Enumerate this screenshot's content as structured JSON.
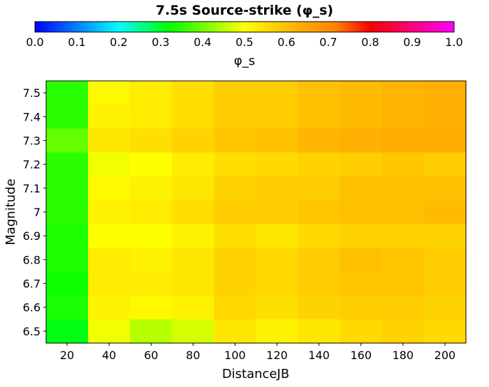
{
  "chart_data": {
    "type": "heatmap",
    "title": "7.5s Source-strike (φ_s)",
    "colorbar": {
      "label": "φ_s",
      "range": [
        0.0,
        1.0
      ],
      "ticks": [
        "0.0",
        "0.1",
        "0.2",
        "0.3",
        "0.4",
        "0.5",
        "0.6",
        "0.7",
        "0.8",
        "0.9",
        "1.0"
      ]
    },
    "xlabel": "DistanceJB",
    "ylabel": "Magnitude",
    "x": [
      "20",
      "40",
      "60",
      "80",
      "100",
      "120",
      "140",
      "160",
      "180",
      "200"
    ],
    "y": [
      "7.5",
      "7.4",
      "7.3",
      "7.2",
      "7.1",
      "7",
      "6.9",
      "6.8",
      "6.7",
      "6.6",
      "6.5"
    ],
    "values": [
      [
        0.35,
        0.51,
        0.53,
        0.55,
        0.58,
        0.58,
        0.6,
        0.61,
        0.62,
        0.63
      ],
      [
        0.35,
        0.52,
        0.53,
        0.55,
        0.58,
        0.58,
        0.6,
        0.61,
        0.62,
        0.63
      ],
      [
        0.39,
        0.54,
        0.55,
        0.57,
        0.59,
        0.6,
        0.62,
        0.63,
        0.64,
        0.64
      ],
      [
        0.35,
        0.49,
        0.5,
        0.53,
        0.55,
        0.56,
        0.57,
        0.58,
        0.59,
        0.58
      ],
      [
        0.35,
        0.51,
        0.52,
        0.54,
        0.57,
        0.58,
        0.58,
        0.6,
        0.6,
        0.6
      ],
      [
        0.35,
        0.52,
        0.53,
        0.55,
        0.58,
        0.58,
        0.59,
        0.6,
        0.6,
        0.61
      ],
      [
        0.34,
        0.5,
        0.5,
        0.52,
        0.55,
        0.54,
        0.56,
        0.57,
        0.57,
        0.57
      ],
      [
        0.34,
        0.53,
        0.52,
        0.54,
        0.57,
        0.56,
        0.58,
        0.6,
        0.59,
        0.58
      ],
      [
        0.33,
        0.53,
        0.53,
        0.54,
        0.57,
        0.56,
        0.58,
        0.59,
        0.59,
        0.58
      ],
      [
        0.34,
        0.52,
        0.51,
        0.52,
        0.56,
        0.55,
        0.57,
        0.58,
        0.58,
        0.57
      ],
      [
        0.31,
        0.49,
        0.45,
        0.47,
        0.54,
        0.52,
        0.54,
        0.56,
        0.57,
        0.56
      ]
    ]
  }
}
